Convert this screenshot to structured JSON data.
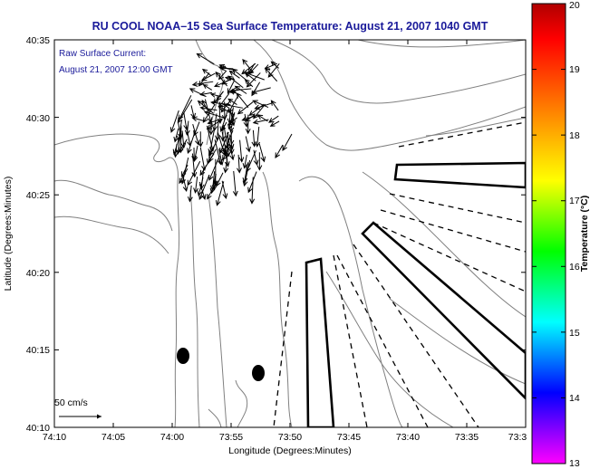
{
  "title": "RU COOL  NOAA–15  Sea Surface Temperature:  August 21, 2007 1040 GMT",
  "annotation": {
    "line1": "Raw Surface Current:",
    "line2": "August 21, 2007 12:00 GMT"
  },
  "scale_label": "50 cm/s",
  "axes": {
    "xlabel": "Longitude (Degrees:Minutes)",
    "ylabel": "Latitude (Degrees:Minutes)",
    "x_ticks": [
      "74:10",
      "74:05",
      "74:00",
      "73:55",
      "73:50",
      "73:45",
      "73:40",
      "73:35",
      "73:3"
    ],
    "y_ticks": [
      "40:35",
      "40:30",
      "40:25",
      "40:20",
      "40:15",
      "40:10"
    ]
  },
  "colorbar": {
    "label": "Temperature (°C)",
    "min": 13,
    "max": 20,
    "ticks": [
      "20",
      "19",
      "18",
      "17",
      "16",
      "15",
      "14",
      "13"
    ],
    "colors": [
      "#ff00ff",
      "#8000ff",
      "#0000ff",
      "#0080ff",
      "#00ffff",
      "#00ff80",
      "#00ff00",
      "#80ff00",
      "#ffff00",
      "#ffc000",
      "#ff8000",
      "#ff4000",
      "#ff0000",
      "#b00000"
    ]
  },
  "colors": {
    "title": "#1a1a9a",
    "contour": "#808080"
  }
}
